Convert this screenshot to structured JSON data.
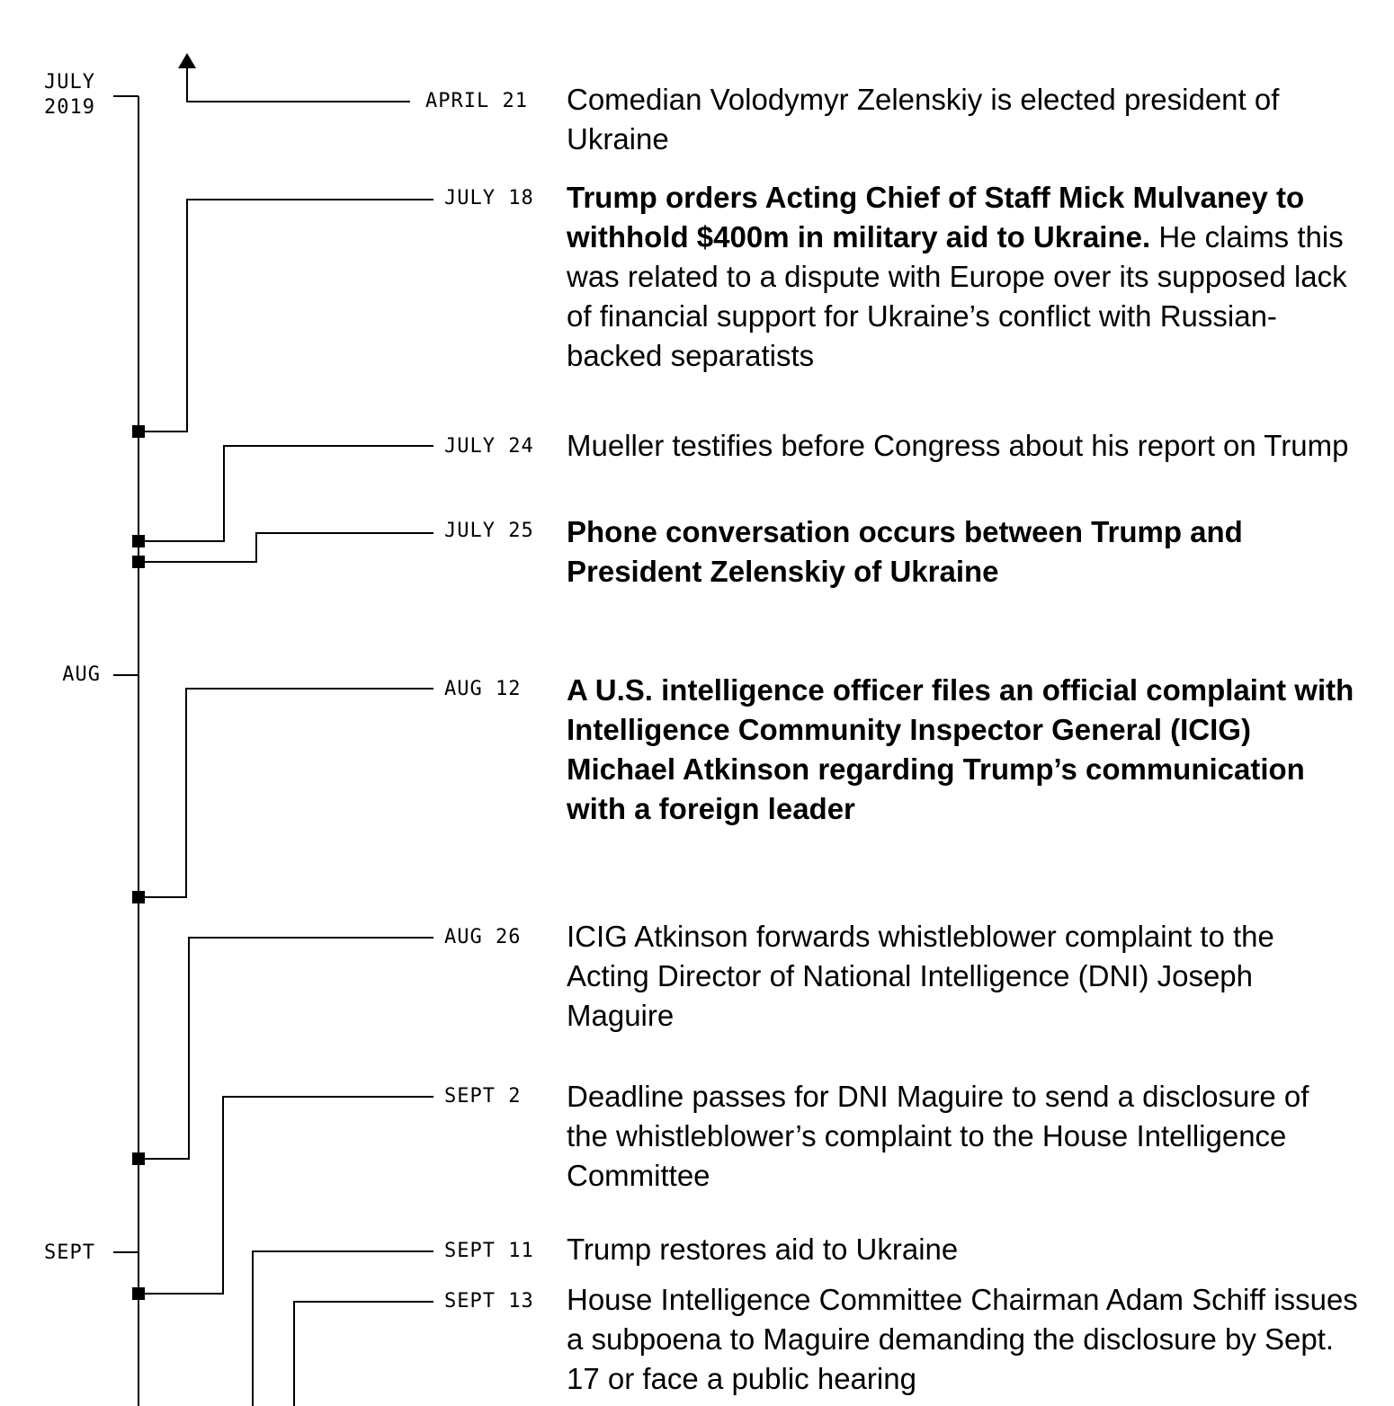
{
  "months": [
    {
      "label": "JULY\n2019"
    },
    {
      "label": "AUG"
    },
    {
      "label": "SEPT"
    }
  ],
  "events": [
    {
      "date": "APRIL 21",
      "bold": "",
      "text": "Comedian Volodymyr Zelenskiy is elected president of Ukraine"
    },
    {
      "date": "JULY 18",
      "bold": "Trump orders Acting Chief of Staff Mick Mulvaney to withhold $400m in military aid to Ukraine.",
      "text": " He claims this was related to a dispute with Europe over its supposed lack of financial support for Ukraine’s conflict with Russian-backed separatists"
    },
    {
      "date": "JULY 24",
      "bold": "",
      "text": "Mueller testifies before Congress about his report on Trump"
    },
    {
      "date": "JULY 25",
      "bold": "Phone conversation occurs between Trump and President Zelenskiy of Ukraine",
      "text": ""
    },
    {
      "date": "AUG 12",
      "bold": "A U.S. intelligence officer files an official complaint with Intelligence Community Inspector General (ICIG) Michael Atkinson regarding Trump’s communication with a foreign leader",
      "text": ""
    },
    {
      "date": "AUG 26",
      "bold": "",
      "text": "ICIG Atkinson forwards whistleblower complaint to the Acting Director of National Intelligence (DNI) Joseph Maguire"
    },
    {
      "date": "SEPT 2",
      "bold": "",
      "text": "Deadline passes for DNI Maguire to send a disclosure of the whistleblower’s complaint to the House Intelligence Committee"
    },
    {
      "date": "SEPT 11",
      "bold": "",
      "text": "Trump restores aid to Ukraine"
    },
    {
      "date": "SEPT 13",
      "bold": "",
      "text": "House Intelligence Committee Chairman Adam Schiff issues a subpoena to Maguire demanding the disclosure by Sept. 17 or face a public hearing"
    }
  ]
}
